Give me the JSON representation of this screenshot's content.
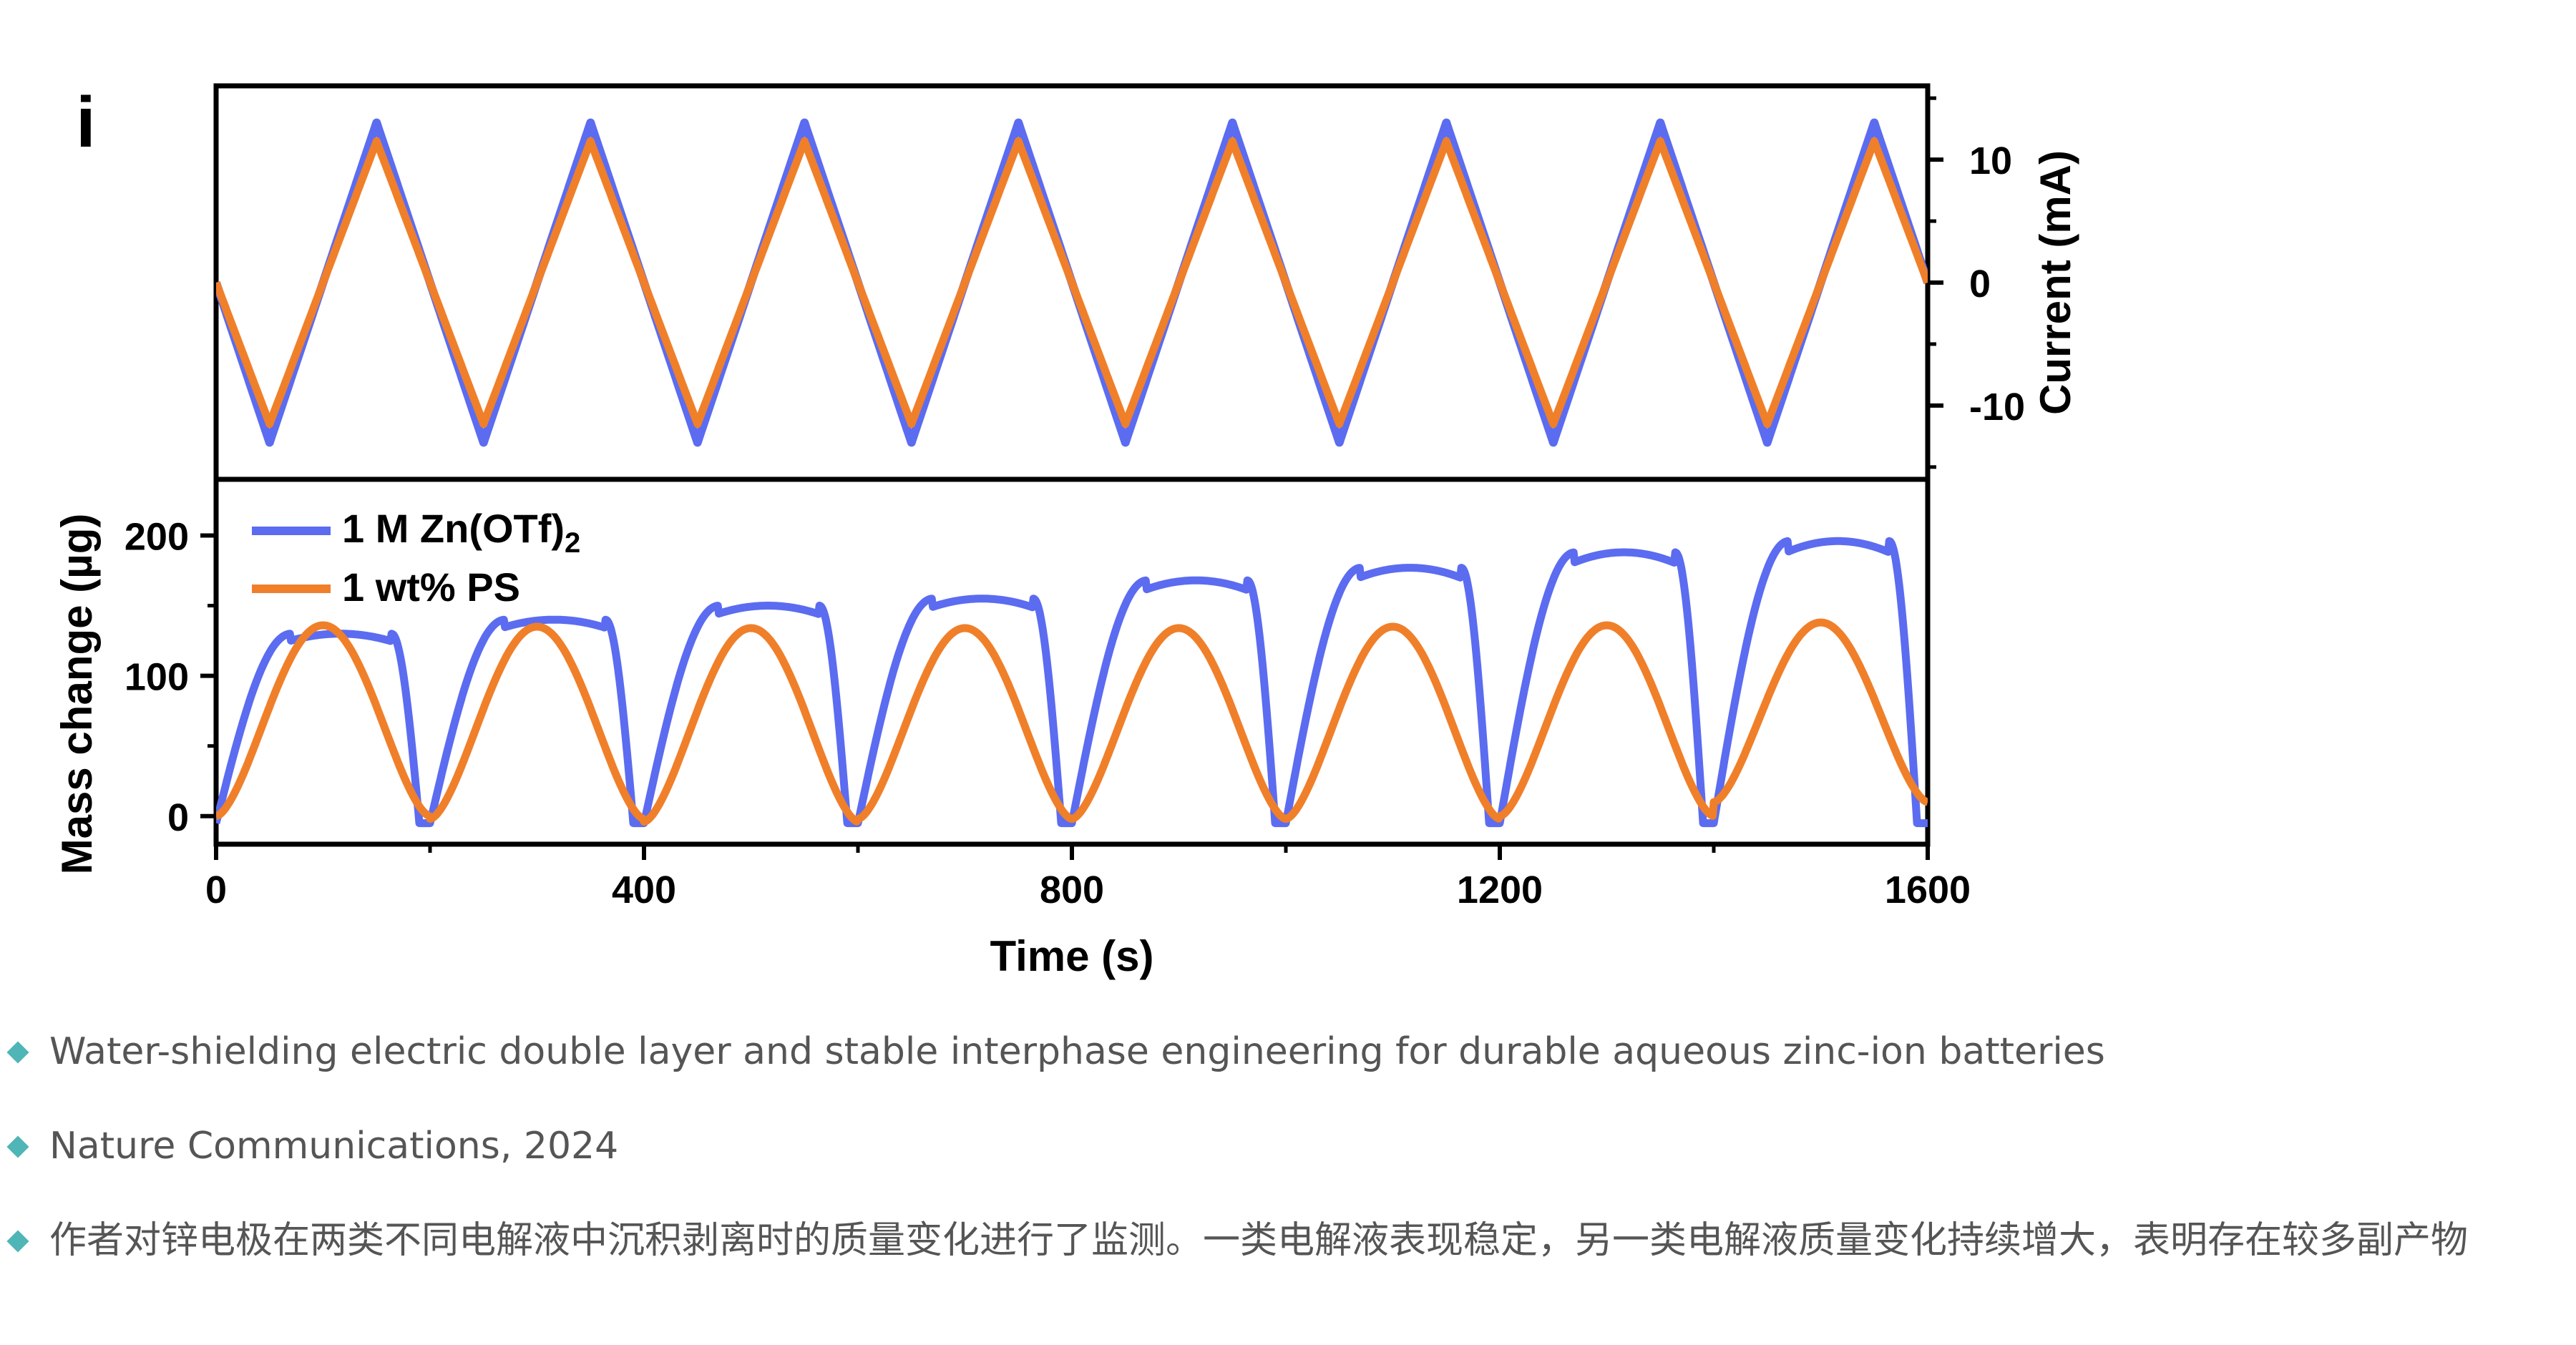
{
  "panel_label": "i",
  "chart_data": {
    "type": "line",
    "x_axis": {
      "label": "Time (s)",
      "range": [
        0,
        1600
      ],
      "ticks": [
        "0",
        "400",
        "800",
        "1200",
        "1600"
      ]
    },
    "top_panel": {
      "y_label": "Current (mA)",
      "y_axis_side": "right",
      "range": [
        -16,
        16
      ],
      "ticks": [
        "10",
        "0",
        "-10"
      ],
      "waveform": "triangular",
      "period_s": 200,
      "peaks_at_s": [
        150,
        350,
        550,
        750,
        950,
        1150,
        1350,
        1550
      ],
      "troughs_at_s": [
        50,
        250,
        450,
        650,
        850,
        1050,
        1250,
        1450
      ],
      "series": [
        {
          "name": "1 M Zn(OTf)2",
          "color": "#5b6cf0",
          "amplitude": 13
        },
        {
          "name": "1 wt% PS",
          "color": "#f07f2a",
          "amplitude": 11.5
        }
      ]
    },
    "bottom_panel": {
      "y_label": "Mass change (µg)",
      "y_axis_side": "left",
      "range": [
        -20,
        240
      ],
      "ticks": [
        "0",
        "100",
        "200"
      ],
      "series": [
        {
          "name": "1 M Zn(OTf)2",
          "color": "#5b6cf0",
          "cycle_maxima": [
            130,
            140,
            150,
            155,
            168,
            177,
            188,
            196
          ],
          "cycle_minima": [
            -5,
            -5,
            -5,
            -5,
            -5,
            -5,
            -5,
            -5
          ]
        },
        {
          "name": "1 wt% PS",
          "color": "#f07f2a",
          "cycle_maxima": [
            136,
            135,
            134,
            134,
            134,
            135,
            136,
            138
          ],
          "cycle_minima": [
            0,
            -2,
            -4,
            -2,
            -2,
            -2,
            0,
            10
          ]
        }
      ]
    },
    "legend": {
      "position": "top-left of bottom panel",
      "entries": [
        {
          "text": "1 M Zn(OTf)",
          "subscript": "2",
          "color": "#5b6cf0"
        },
        {
          "text": "1 wt% PS",
          "subscript": "",
          "color": "#f07f2a"
        }
      ]
    }
  },
  "captions": [
    "Water-shielding electric double layer and stable interphase engineering for durable aqueous zinc-ion batteries",
    "Nature Communications, 2024",
    "作者对锌电极在两类不同电解液中沉积剥离时的质量变化进行了监测。一类电解液表现稳定，另一类电解液质量变化持续增大，表明存在较多副产物"
  ]
}
